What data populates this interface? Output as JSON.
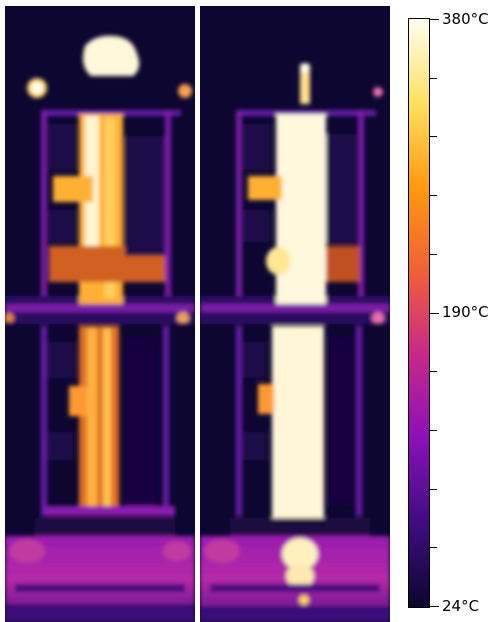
{
  "colorbar": {
    "max_label": "380°C",
    "mid_label": "190°C",
    "min_label": "24°C",
    "colors": [
      "#fffff0",
      "#ffe060",
      "#ff9a10",
      "#f06038",
      "#c8288a",
      "#8a10b8",
      "#400c80",
      "#0c0630"
    ]
  }
}
